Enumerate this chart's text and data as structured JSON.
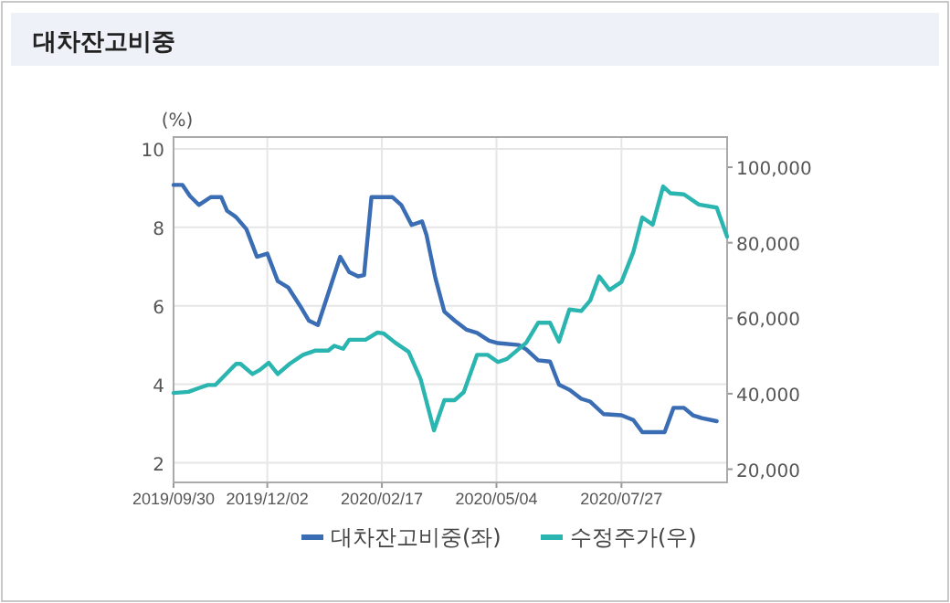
{
  "chart_data": {
    "type": "line",
    "title": "대차잔고비중",
    "ylabel": "(%)",
    "xlim": [
      "2019-09-30",
      "2020-10-06"
    ],
    "xticks": [
      {
        "value": "2019-09-30",
        "label": "2019/09/30"
      },
      {
        "value": "2019-12-02",
        "label": "2019/12/02"
      },
      {
        "value": "2020-02-17",
        "label": "2020/02/17"
      },
      {
        "value": "2020-05-04",
        "label": "2020/05/04"
      },
      {
        "value": "2020-07-27",
        "label": "2020/07/27"
      }
    ],
    "ylim": [
      1.5,
      10.3
    ],
    "yticks": [
      2,
      4,
      6,
      8,
      10
    ],
    "y2lim": [
      16500,
      108000
    ],
    "y2ticks": [
      {
        "value": 20000,
        "label": "20,000"
      },
      {
        "value": 40000,
        "label": "40,000"
      },
      {
        "value": 60000,
        "label": "60,000"
      },
      {
        "value": 80000,
        "label": "80,000"
      },
      {
        "value": 100000,
        "label": "100,000"
      }
    ],
    "grid": true,
    "legend": "bottom",
    "series": [
      {
        "name": "대차잔고비중(좌)",
        "color": "#3a6db3",
        "x": [
          "2019-09-30",
          "2019-10-06",
          "2019-10-11",
          "2019-10-17",
          "2019-10-25",
          "2019-11-01",
          "2019-11-05",
          "2019-11-11",
          "2019-11-18",
          "2019-11-25",
          "2019-12-02",
          "2019-12-09",
          "2019-12-16",
          "2019-12-24",
          "2019-12-30",
          "2020-01-05",
          "2020-01-12",
          "2020-01-20",
          "2020-01-26",
          "2020-02-01",
          "2020-02-05",
          "2020-02-10",
          "2020-02-24",
          "2020-03-01",
          "2020-03-08",
          "2020-03-15",
          "2020-03-18",
          "2020-03-24",
          "2020-03-30",
          "2020-04-06",
          "2020-04-14",
          "2020-04-21",
          "2020-04-29",
          "2020-05-05",
          "2020-05-19",
          "2020-05-24",
          "2020-06-01",
          "2020-06-09",
          "2020-06-15",
          "2020-06-22",
          "2020-06-30",
          "2020-07-06",
          "2020-07-15",
          "2020-07-27",
          "2020-08-04",
          "2020-08-10",
          "2020-08-25",
          "2020-08-31",
          "2020-09-07",
          "2020-09-13",
          "2020-09-19",
          "2020-09-29"
        ],
        "values": [
          9.08,
          9.08,
          8.8,
          8.57,
          8.77,
          8.77,
          8.42,
          8.26,
          7.95,
          7.25,
          7.33,
          6.63,
          6.47,
          6.0,
          5.62,
          5.51,
          6.32,
          7.25,
          6.86,
          6.75,
          6.78,
          8.77,
          8.77,
          8.57,
          8.06,
          8.15,
          7.8,
          6.7,
          5.85,
          5.62,
          5.39,
          5.31,
          5.11,
          5.05,
          5.0,
          4.89,
          4.61,
          4.58,
          3.99,
          3.86,
          3.63,
          3.56,
          3.24,
          3.21,
          3.09,
          2.78,
          2.78,
          3.4,
          3.4,
          3.21,
          3.14,
          3.06
        ]
      },
      {
        "name": "수정주가(우)",
        "color": "#2bb5b0",
        "axis": "y2",
        "x": [
          "2019-09-30",
          "2019-10-10",
          "2019-10-17",
          "2019-10-23",
          "2019-10-28",
          "2019-11-05",
          "2019-11-11",
          "2019-11-14",
          "2019-11-22",
          "2019-11-27",
          "2019-12-03",
          "2019-12-09",
          "2019-12-17",
          "2019-12-26",
          "2020-01-03",
          "2020-01-12",
          "2020-01-16",
          "2020-01-22",
          "2020-01-26",
          "2020-02-06",
          "2020-02-14",
          "2020-02-18",
          "2020-02-26",
          "2020-03-06",
          "2020-03-14",
          "2020-03-23",
          "2020-03-30",
          "2020-04-06",
          "2020-04-12",
          "2020-04-21",
          "2020-04-28",
          "2020-05-05",
          "2020-05-11",
          "2020-05-24",
          "2020-06-01",
          "2020-06-09",
          "2020-06-15",
          "2020-06-22",
          "2020-06-30",
          "2020-07-06",
          "2020-07-12",
          "2020-07-19",
          "2020-07-27",
          "2020-08-04",
          "2020-08-10",
          "2020-08-17",
          "2020-08-24",
          "2020-08-29",
          "2020-09-07",
          "2020-09-17",
          "2020-09-29",
          "2020-10-06"
        ],
        "values": [
          40200,
          40500,
          41500,
          42300,
          42300,
          45500,
          47900,
          47900,
          45200,
          46300,
          48200,
          45200,
          47900,
          50300,
          51400,
          51400,
          52700,
          51900,
          54300,
          54300,
          56200,
          56000,
          53500,
          51100,
          43900,
          30300,
          38300,
          38300,
          40400,
          50300,
          50300,
          48400,
          49200,
          53500,
          58800,
          58800,
          53800,
          62300,
          61900,
          64700,
          71100,
          67500,
          69600,
          77600,
          86700,
          84800,
          94900,
          93100,
          92800,
          90100,
          89300,
          81600
        ]
      }
    ]
  }
}
